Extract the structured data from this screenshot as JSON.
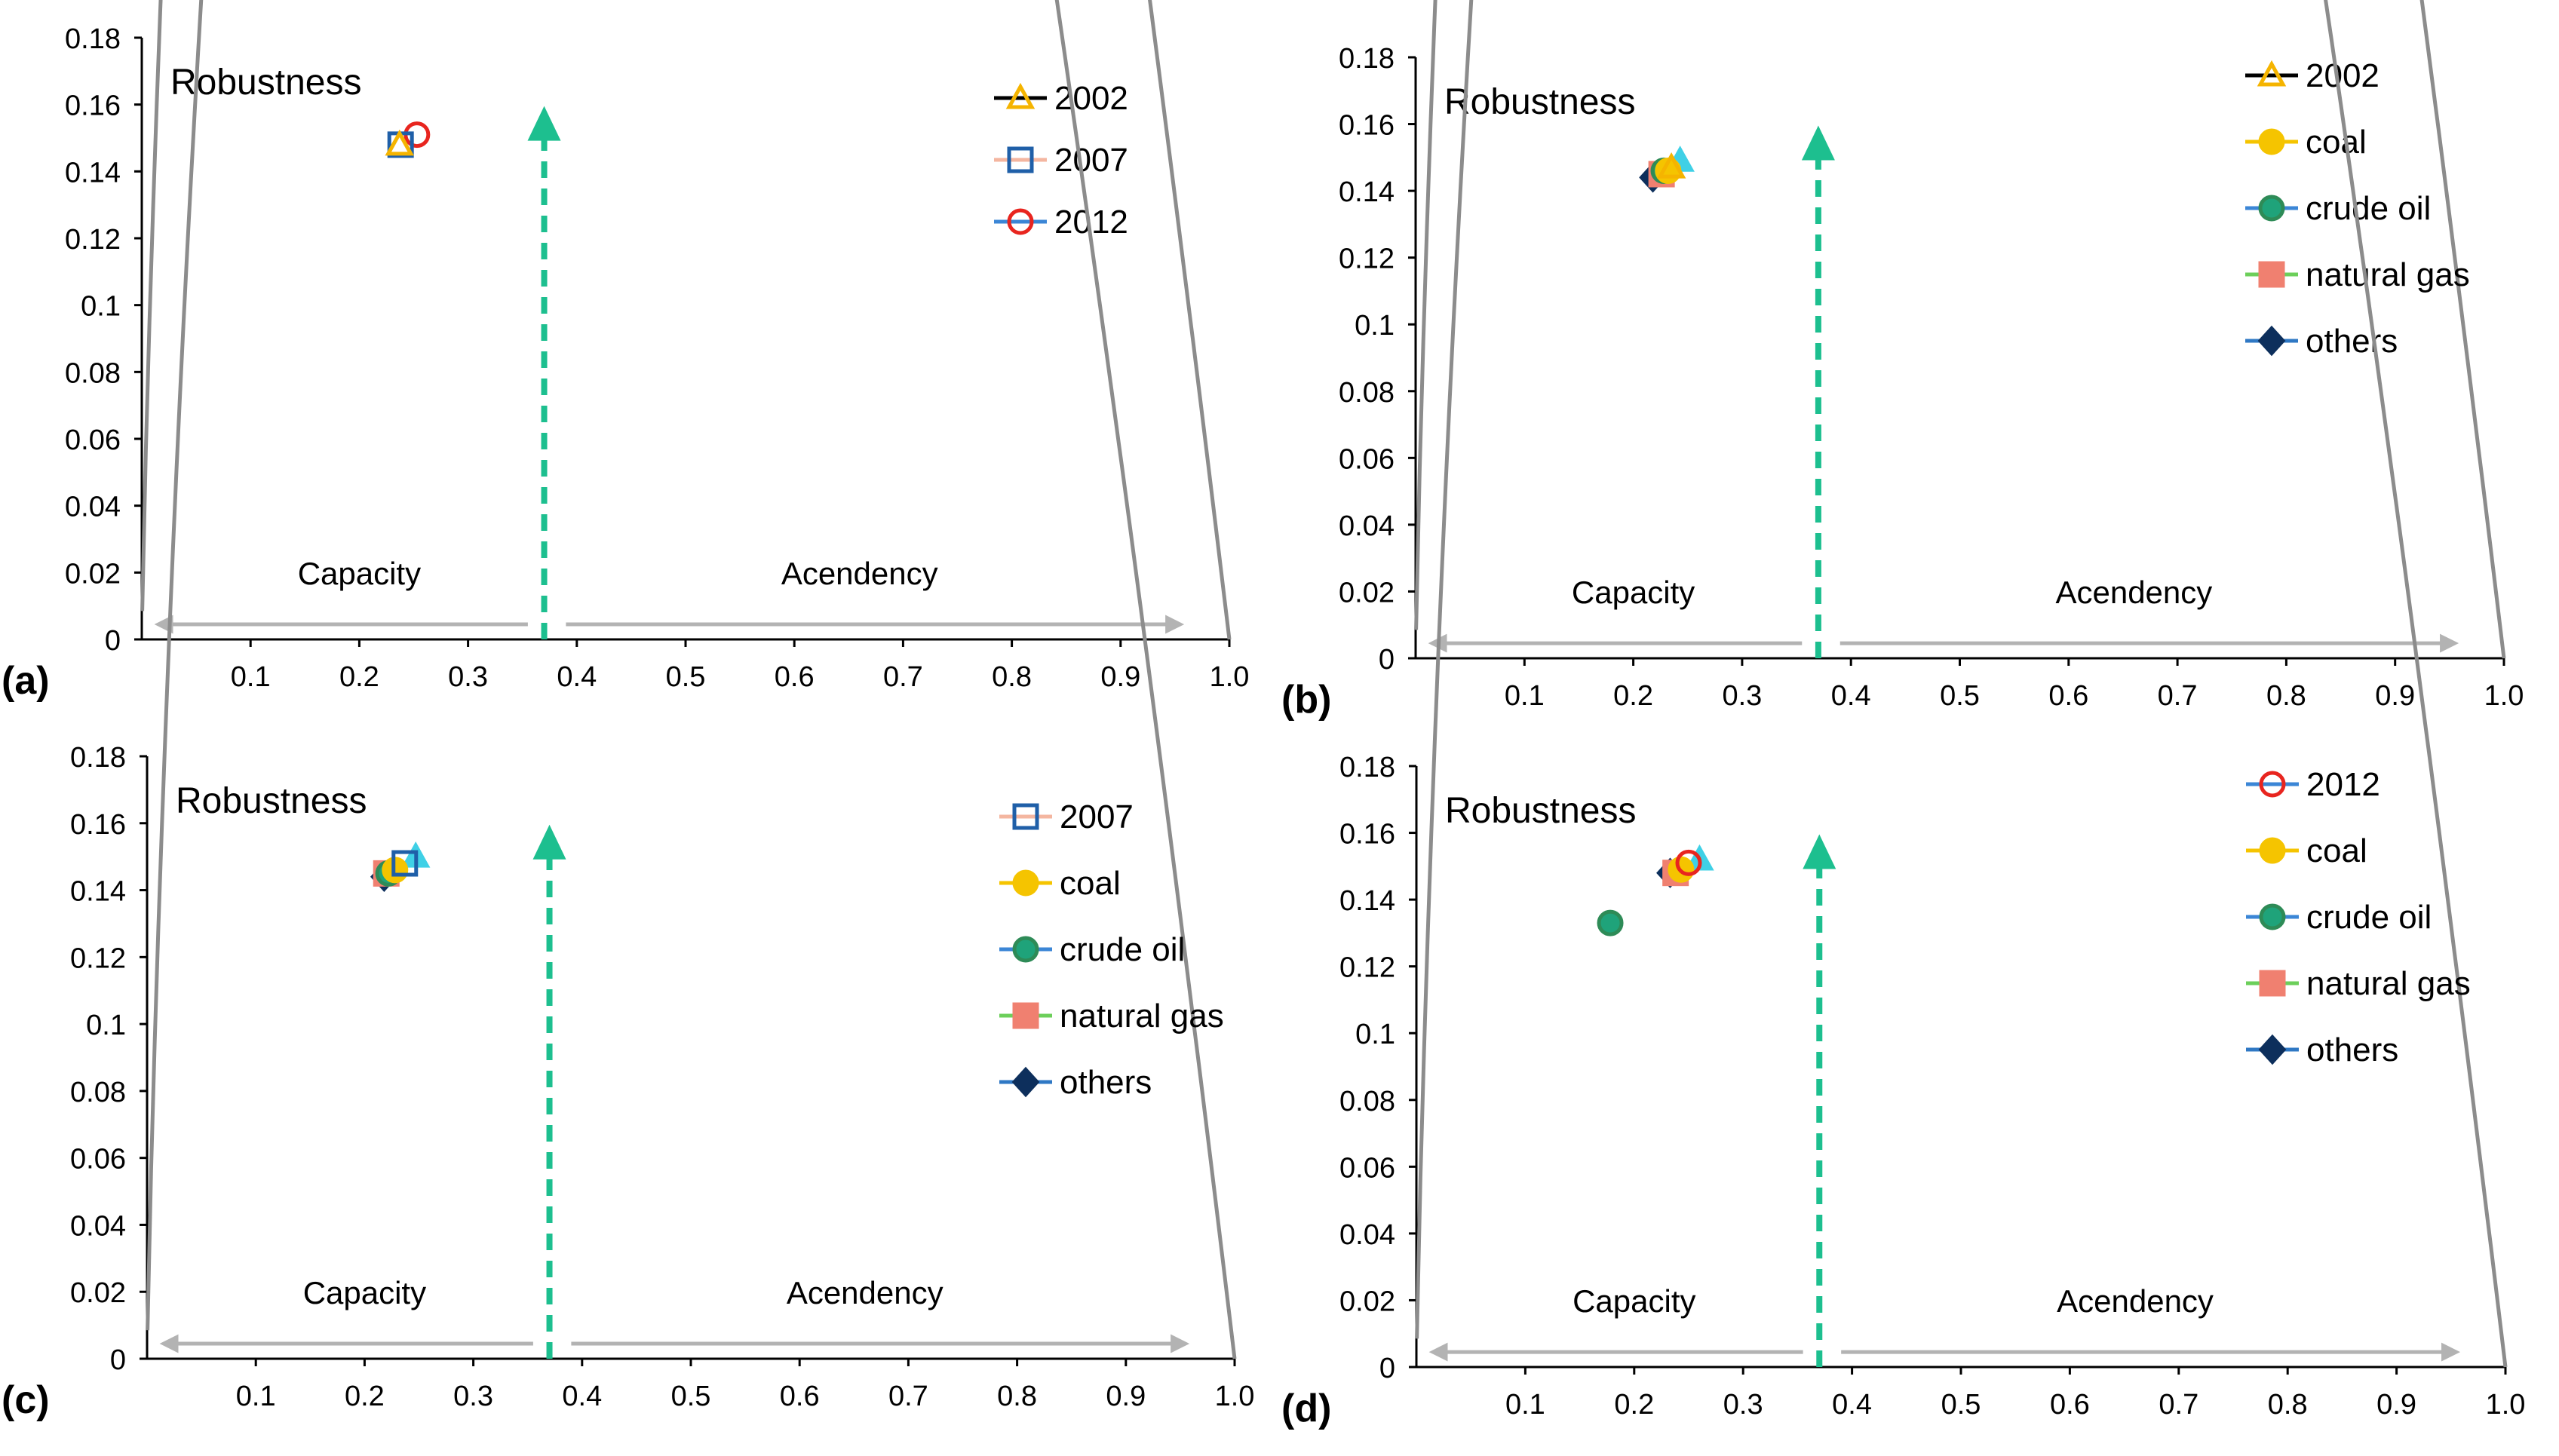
{
  "chart_data": [
    {
      "type": "line",
      "panel_label": "(a)",
      "title": "Robustness",
      "xlabel": "",
      "ylabel": "",
      "xlim": [
        0,
        1.0
      ],
      "ylim": [
        0,
        0.18
      ],
      "xticks": [
        0.1,
        0.2,
        0.3,
        0.4,
        0.5,
        0.6,
        0.7,
        0.8,
        0.9,
        1.0
      ],
      "xtick_labels": [
        "0.1",
        "0.2",
        "0.3",
        "0.4",
        "0.5",
        "0.6",
        "0.7",
        "0.8",
        "0.9",
        "1.0"
      ],
      "yticks": [
        0,
        0.02,
        0.04,
        0.06,
        0.08,
        0.1,
        0.12,
        0.14,
        0.16,
        0.18
      ],
      "ytick_labels": [
        "0",
        "0.02",
        "0.04",
        "0.06",
        "0.08",
        "0.1",
        "0.12",
        "0.14",
        "0.16",
        "0.18"
      ],
      "curve": {
        "name": "Robustness",
        "formula": "-e*a*ln(a)",
        "color": "#8c8c8c"
      },
      "peak_arrow": {
        "x": 0.37,
        "y": 0.16,
        "color": "#1dbf8f"
      },
      "annotations": {
        "left": "Capacity",
        "right": "Acendency"
      },
      "legend_position": "top-right",
      "series": [
        {
          "name": "2002",
          "marker": "triangle",
          "color": "#f5b400",
          "fill": "none",
          "line_color": "#000000",
          "points": [
            {
              "x": 0.237,
              "y": 0.148
            }
          ]
        },
        {
          "name": "2007",
          "marker": "square",
          "color": "#1f5fa8",
          "fill": "none",
          "line_color": "#f4b6a0",
          "points": [
            {
              "x": 0.238,
              "y": 0.148
            }
          ]
        },
        {
          "name": "2012",
          "marker": "circle",
          "color": "#e8251f",
          "fill": "none",
          "line_color": "#3b86d6",
          "points": [
            {
              "x": 0.253,
              "y": 0.151
            }
          ]
        }
      ]
    },
    {
      "type": "line",
      "panel_label": "(b)",
      "title": "Robustness",
      "xlabel": "",
      "ylabel": "",
      "xlim": [
        0,
        1.0
      ],
      "ylim": [
        0,
        0.18
      ],
      "xticks": [
        0.1,
        0.2,
        0.3,
        0.4,
        0.5,
        0.6,
        0.7,
        0.8,
        0.9,
        1.0
      ],
      "xtick_labels": [
        "0.1",
        "0.2",
        "0.3",
        "0.4",
        "0.5",
        "0.6",
        "0.7",
        "0.8",
        "0.9",
        "1.0"
      ],
      "yticks": [
        0,
        0.02,
        0.04,
        0.06,
        0.08,
        0.1,
        0.12,
        0.14,
        0.16,
        0.18
      ],
      "ytick_labels": [
        "0",
        "0.02",
        "0.04",
        "0.06",
        "0.08",
        "0.1",
        "0.12",
        "0.14",
        "0.16",
        "0.18"
      ],
      "curve": {
        "name": "Robustness",
        "formula": "-e*a*ln(a)",
        "color": "#8c8c8c"
      },
      "peak_arrow": {
        "x": 0.37,
        "y": 0.16,
        "color": "#1dbf8f"
      },
      "annotations": {
        "left": "Capacity",
        "right": "Acendency"
      },
      "legend_position": "top-right",
      "series": [
        {
          "name": "2002",
          "marker": "triangle",
          "color": "#f5b400",
          "fill": "none",
          "line_color": "#000000",
          "points": [
            {
              "x": 0.235,
              "y": 0.147
            }
          ]
        },
        {
          "name": "coal",
          "marker": "circle",
          "color": "#f5c400",
          "fill": "#f5c400",
          "line_color": "#f5c400",
          "points": [
            {
              "x": 0.232,
              "y": 0.146
            }
          ]
        },
        {
          "name": "crude oil",
          "marker": "circle",
          "color": "#2e8b57",
          "fill": "#1fa37a",
          "line_color": "#3b86d6",
          "points": [
            {
              "x": 0.228,
              "y": 0.146
            }
          ]
        },
        {
          "name": "natural gas",
          "marker": "square",
          "color": "#f08070",
          "fill": "#f08070",
          "line_color": "#6ccf5a",
          "points": [
            {
              "x": 0.226,
              "y": 0.145
            }
          ]
        },
        {
          "name": "others",
          "marker": "diamond",
          "color": "#0d2f5c",
          "fill": "#0d2f5c",
          "line_color": "#2f78c4",
          "points": [
            {
              "x": 0.218,
              "y": 0.144
            }
          ]
        },
        {
          "name": "",
          "marker": "triangle",
          "color": "#3fd0e6",
          "fill": "#3fd0e6",
          "line_color": "none",
          "legend": false,
          "points": [
            {
              "x": 0.243,
              "y": 0.149
            }
          ]
        }
      ]
    },
    {
      "type": "line",
      "panel_label": "(c)",
      "title": "Robustness",
      "xlabel": "",
      "ylabel": "",
      "xlim": [
        0,
        1.0
      ],
      "ylim": [
        0,
        0.18
      ],
      "xticks": [
        0.1,
        0.2,
        0.3,
        0.4,
        0.5,
        0.6,
        0.7,
        0.8,
        0.9,
        1.0
      ],
      "xtick_labels": [
        "0.1",
        "0.2",
        "0.3",
        "0.4",
        "0.5",
        "0.6",
        "0.7",
        "0.8",
        "0.9",
        "1.0"
      ],
      "yticks": [
        0,
        0.02,
        0.04,
        0.06,
        0.08,
        0.1,
        0.12,
        0.14,
        0.16,
        0.18
      ],
      "ytick_labels": [
        "0",
        "0.02",
        "0.04",
        "0.06",
        "0.08",
        "0.1",
        "0.12",
        "0.14",
        "0.16",
        "0.18"
      ],
      "curve": {
        "name": "Robustness",
        "formula": "-e*a*ln(a)",
        "color": "#8c8c8c"
      },
      "peak_arrow": {
        "x": 0.37,
        "y": 0.16,
        "color": "#1dbf8f"
      },
      "annotations": {
        "left": "Capacity",
        "right": "Acendency"
      },
      "legend_position": "top-right",
      "series": [
        {
          "name": "2007",
          "marker": "square",
          "color": "#1f5fa8",
          "fill": "none",
          "line_color": "#f4b6a0",
          "points": [
            {
              "x": 0.237,
              "y": 0.148
            }
          ]
        },
        {
          "name": "coal",
          "marker": "circle",
          "color": "#f5c400",
          "fill": "#f5c400",
          "line_color": "#f5c400",
          "points": [
            {
              "x": 0.228,
              "y": 0.146
            }
          ]
        },
        {
          "name": "crude oil",
          "marker": "circle",
          "color": "#2e8b57",
          "fill": "#1fa37a",
          "line_color": "#3b86d6",
          "points": [
            {
              "x": 0.222,
              "y": 0.145
            }
          ]
        },
        {
          "name": "natural gas",
          "marker": "square",
          "color": "#f08070",
          "fill": "#f08070",
          "line_color": "#6ccf5a",
          "points": [
            {
              "x": 0.22,
              "y": 0.145
            }
          ]
        },
        {
          "name": "others",
          "marker": "diamond",
          "color": "#0d2f5c",
          "fill": "#0d2f5c",
          "line_color": "#2f78c4",
          "points": [
            {
              "x": 0.218,
              "y": 0.144
            }
          ]
        },
        {
          "name": "",
          "marker": "triangle",
          "color": "#3fd0e6",
          "fill": "#3fd0e6",
          "line_color": "none",
          "legend": false,
          "points": [
            {
              "x": 0.247,
              "y": 0.15
            }
          ]
        }
      ]
    },
    {
      "type": "line",
      "panel_label": "(d)",
      "title": "Robustness",
      "xlabel": "",
      "ylabel": "",
      "xlim": [
        0,
        1.0
      ],
      "ylim": [
        0,
        0.18
      ],
      "xticks": [
        0.1,
        0.2,
        0.3,
        0.4,
        0.5,
        0.6,
        0.7,
        0.8,
        0.9,
        1.0
      ],
      "xtick_labels": [
        "0.1",
        "0.2",
        "0.3",
        "0.4",
        "0.5",
        "0.6",
        "0.7",
        "0.8",
        "0.9",
        "1.0"
      ],
      "yticks": [
        0,
        0.02,
        0.04,
        0.06,
        0.08,
        0.1,
        0.12,
        0.14,
        0.16,
        0.18
      ],
      "ytick_labels": [
        "0",
        "0.02",
        "0.04",
        "0.06",
        "0.08",
        "0.1",
        "0.12",
        "0.14",
        "0.16",
        "0.18"
      ],
      "curve": {
        "name": "Robustness",
        "formula": "-e*a*ln(a)",
        "color": "#8c8c8c"
      },
      "peak_arrow": {
        "x": 0.37,
        "y": 0.16,
        "color": "#1dbf8f"
      },
      "annotations": {
        "left": "Capacity",
        "right": "Acendency"
      },
      "legend_position": "top-right",
      "series": [
        {
          "name": "2012",
          "marker": "circle",
          "color": "#e8251f",
          "fill": "none",
          "line_color": "#3b86d6",
          "points": [
            {
              "x": 0.25,
              "y": 0.151
            }
          ]
        },
        {
          "name": "coal",
          "marker": "circle",
          "color": "#f5c400",
          "fill": "#f5c400",
          "line_color": "#f5c400",
          "points": [
            {
              "x": 0.243,
              "y": 0.149
            }
          ]
        },
        {
          "name": "crude oil",
          "marker": "circle",
          "color": "#2e8b57",
          "fill": "#1fa37a",
          "line_color": "#3b86d6",
          "points": [
            {
              "x": 0.178,
              "y": 0.133
            }
          ]
        },
        {
          "name": "natural gas",
          "marker": "square",
          "color": "#f08070",
          "fill": "#f08070",
          "line_color": "#6ccf5a",
          "points": [
            {
              "x": 0.238,
              "y": 0.148
            }
          ]
        },
        {
          "name": "others",
          "marker": "diamond",
          "color": "#0d2f5c",
          "fill": "#0d2f5c",
          "line_color": "#2f78c4",
          "points": [
            {
              "x": 0.233,
              "y": 0.148
            }
          ]
        },
        {
          "name": "",
          "marker": "triangle",
          "color": "#3fd0e6",
          "fill": "#3fd0e6",
          "line_color": "none",
          "legend": false,
          "points": [
            {
              "x": 0.26,
              "y": 0.152
            }
          ]
        }
      ]
    }
  ]
}
